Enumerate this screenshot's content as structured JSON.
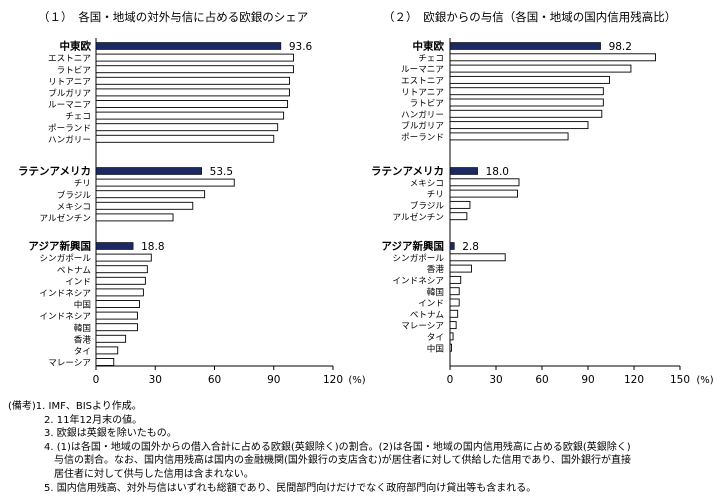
{
  "titles": {
    "left": "（１）　各国・地域の対外与信に占める欧銀のシェア",
    "right": "（２）　欧銀からの与信（各国・地域の国内信用残高比）"
  },
  "chart_data": [
    {
      "type": "bar",
      "orientation": "horizontal",
      "title": "（１）　各国・地域の対外与信に占める欧銀のシェア",
      "xlim": [
        0,
        120
      ],
      "xticks": [
        "0",
        "30",
        "60",
        "90",
        "120"
      ],
      "unit_label": "(%)",
      "groups": [
        {
          "categories": [
            "中東欧",
            "エストニア",
            "ラトビア",
            "リトアニア",
            "ブルガリア",
            "ルーマニア",
            "チェコ",
            "ポーランド",
            "ハンガリー"
          ],
          "values": [
            93.6,
            100,
            100,
            98,
            98,
            97,
            95,
            92,
            90
          ],
          "label": "93.6"
        },
        {
          "categories": [
            "ラテンアメリカ",
            "チリ",
            "ブラジル",
            "メキシコ",
            "アルゼンチン"
          ],
          "values": [
            53.5,
            70,
            55,
            49,
            39
          ],
          "label": "53.5"
        },
        {
          "categories": [
            "アジア新興国",
            "シンガポール",
            "ベトナム",
            "インド",
            "インドネシア",
            "中国",
            "インドネシア",
            "韓国",
            "香港",
            "タイ",
            "マレーシア"
          ],
          "values": [
            18.8,
            28,
            26,
            25,
            24,
            22,
            21,
            21,
            15,
            11,
            9
          ],
          "label": "18.8"
        }
      ]
    },
    {
      "type": "bar",
      "orientation": "horizontal",
      "title": "（２）　欧銀からの与信（各国・地域の国内信用残高比）",
      "xlim": [
        0,
        150
      ],
      "xticks": [
        "0",
        "30",
        "60",
        "90",
        "120",
        "150"
      ],
      "unit_label": "(%)",
      "groups": [
        {
          "categories": [
            "中東欧",
            "チェコ",
            "ルーマニア",
            "エストニア",
            "リトアニア",
            "ラトビア",
            "ハンガリー",
            "ブルガリア",
            "ポーランド"
          ],
          "values": [
            98.2,
            134,
            118,
            104,
            100,
            100,
            99,
            90,
            77
          ],
          "label": "98.2"
        },
        {
          "categories": [
            "ラテンアメリカ",
            "メキシコ",
            "チリ",
            "ブラジル",
            "アルゼンチン"
          ],
          "values": [
            18.0,
            45,
            44,
            13,
            11
          ],
          "label": "18.0"
        },
        {
          "categories": [
            "アジア新興国",
            "シンガポール",
            "香港",
            "インドネシア",
            "韓国",
            "インド",
            "ベトナム",
            "マレーシア",
            "タイ",
            "中国"
          ],
          "values": [
            2.8,
            36,
            14,
            7,
            6,
            6,
            5,
            4,
            2,
            1
          ],
          "label": "2.8"
        }
      ]
    }
  ],
  "notes": [
    "(備考)1. IMF、BISより作成。",
    "2. 11年12月末の値。",
    "3. 欧銀は英銀を除いたもの。",
    "4. (1)は各国・地域の国外からの借入合計に占める欧銀(英銀除く)の割合。(2)は各国・地域の国内信用残高に占める欧銀(英銀除く)",
    "与信の割合。なお、国内信用残高は国内の金融機関(国外銀行の支店含む)が居住者に対して供給した信用であり、国外銀行が直接",
    "居住者に対して供与した信用は含まれない。",
    "5. 国内信用残高、対外与信はいずれも総額であり、民間部門向けだけでなく政府部門向け貸出等も含まれる。"
  ],
  "colors": {
    "highlight": "#1c2a63",
    "bar": "#ffffff",
    "outline": "#000000"
  }
}
